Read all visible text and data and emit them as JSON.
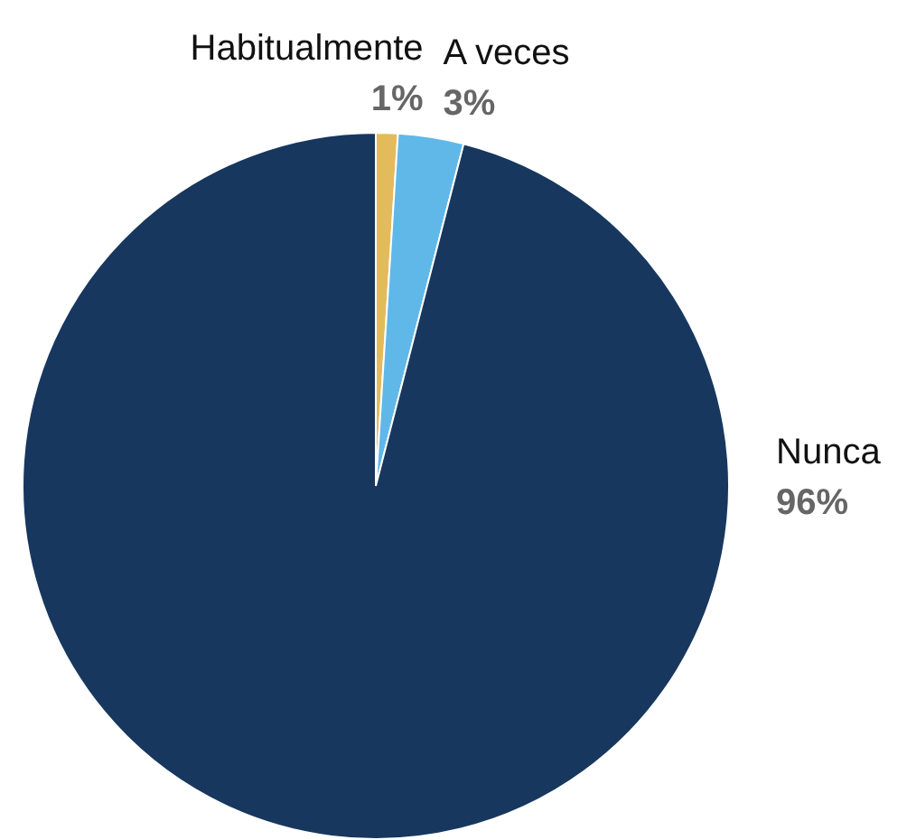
{
  "chart_data": {
    "type": "pie",
    "categories": [
      "Habitualmente",
      "A veces",
      "Nunca"
    ],
    "values": [
      1,
      3,
      96
    ],
    "value_labels": [
      "1%",
      "3%",
      "96%"
    ],
    "colors": [
      "#e3bb5c",
      "#5fb8e8",
      "#17375e"
    ]
  }
}
